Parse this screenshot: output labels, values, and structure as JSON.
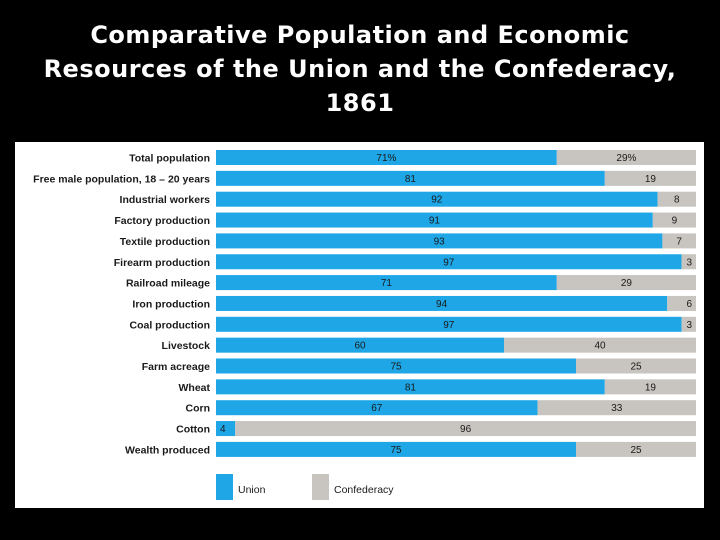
{
  "title": {
    "line1": "Comparative Population and Economic",
    "line2": "Resources of the Union and the Confederacy,",
    "line3": "1861"
  },
  "colors": {
    "union": "#1ea6e6",
    "confederacy": "#c8c4c0",
    "background": "#000000",
    "panel": "#ffffff"
  },
  "chart_data": {
    "type": "bar",
    "orientation": "horizontal",
    "stacked": true,
    "xlim": [
      0,
      100
    ],
    "categories": [
      "Total population",
      "Free male population, 18 – 20 years",
      "Industrial workers",
      "Factory production",
      "Textile production",
      "Firearm production",
      "Railroad mileage",
      "Iron production",
      "Coal production",
      "Livestock",
      "Farm acreage",
      "Wheat",
      "Corn",
      "Cotton",
      "Wealth produced"
    ],
    "series": [
      {
        "name": "Union",
        "values": [
          71,
          81,
          92,
          91,
          93,
          97,
          71,
          94,
          97,
          60,
          75,
          81,
          67,
          4,
          75
        ],
        "labels": [
          "71%",
          "81",
          "92",
          "91",
          "93",
          "97",
          "71",
          "94",
          "97",
          "60",
          "75",
          "81",
          "67",
          "4",
          "75"
        ]
      },
      {
        "name": "Confederacy",
        "values": [
          29,
          19,
          8,
          9,
          7,
          3,
          29,
          6,
          3,
          40,
          25,
          19,
          33,
          96,
          25
        ],
        "labels": [
          "29%",
          "19",
          "8",
          "9",
          "7",
          "3",
          "29",
          "6",
          "3",
          "40",
          "25",
          "19",
          "33",
          "96",
          "25"
        ]
      }
    ],
    "legend": {
      "placement": "bottom-left",
      "entries": [
        "Union",
        "Confederacy"
      ]
    }
  }
}
